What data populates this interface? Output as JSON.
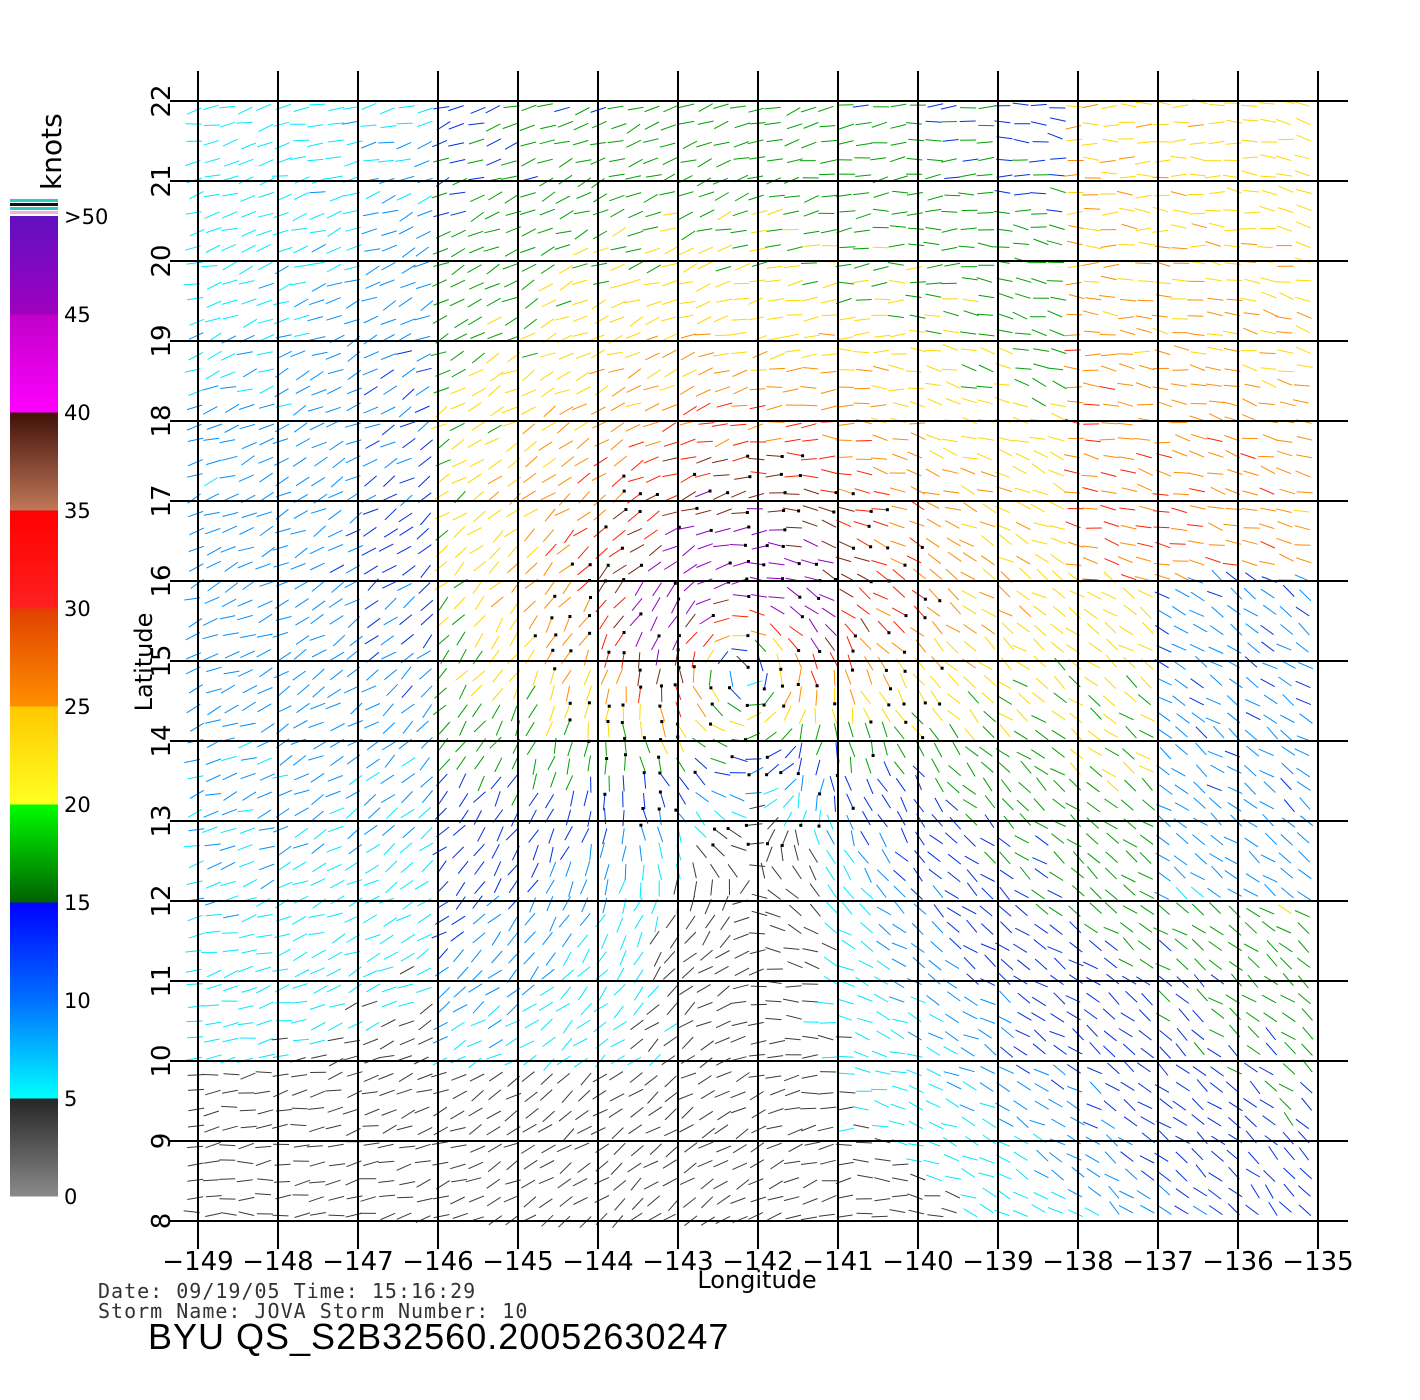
{
  "chart_data": {
    "type": "vector_field",
    "xlabel": "Longitude",
    "ylabel": "Latitude",
    "xlim": [
      -149,
      -135
    ],
    "ylim": [
      8,
      22
    ],
    "x_ticks": [
      "-149",
      "-148",
      "-147",
      "-146",
      "-145",
      "-144",
      "-143",
      "-142",
      "-141",
      "-140",
      "-139",
      "-138",
      "-137",
      "-136",
      "-135"
    ],
    "y_ticks": [
      "8",
      "9",
      "10",
      "11",
      "12",
      "13",
      "14",
      "15",
      "16",
      "17",
      "18",
      "19",
      "20",
      "21",
      "22"
    ],
    "grid": true,
    "colorbar": {
      "unit_label": "knots",
      "tick_labels": [
        "0",
        "5",
        "10",
        "15",
        "20",
        "25",
        "30",
        "35",
        "40",
        "45",
        ">50"
      ],
      "bands": [
        {
          "from": 0,
          "to": 5,
          "colors": [
            "#8a8a8a",
            "#252525"
          ]
        },
        {
          "from": 5,
          "to": 10,
          "colors": [
            "#00ffff",
            "#0070ff"
          ]
        },
        {
          "from": 10,
          "to": 15,
          "colors": [
            "#0070ff",
            "#0000ff"
          ]
        },
        {
          "from": 15,
          "to": 20,
          "colors": [
            "#006000",
            "#00ff00"
          ]
        },
        {
          "from": 20,
          "to": 25,
          "colors": [
            "#ffff20",
            "#ffc800"
          ]
        },
        {
          "from": 25,
          "to": 30,
          "colors": [
            "#ff9000",
            "#e04000"
          ]
        },
        {
          "from": 30,
          "to": 35,
          "colors": [
            "#ff2020",
            "#ff0000"
          ]
        },
        {
          "from": 35,
          "to": 40,
          "colors": [
            "#c07858",
            "#401008"
          ]
        },
        {
          "from": 40,
          "to": 45,
          "colors": [
            "#ff00ff",
            "#c000c8"
          ]
        },
        {
          "from": 45,
          "to": 50,
          "colors": [
            "#a000c0",
            "#6010c0"
          ]
        }
      ]
    },
    "wind_field": {
      "storm_center": {
        "lon": -142.2,
        "lat": 15.2
      },
      "max_speed_knots": 45,
      "arrow_spacing_deg": 0.22
    }
  },
  "footer": {
    "date_line": "Date: 09/19/05   Time: 15:16:29",
    "storm_line": "Storm Name: JOVA   Storm Number: 10",
    "product_id": "BYU QS_S2B32560.20052630247"
  }
}
